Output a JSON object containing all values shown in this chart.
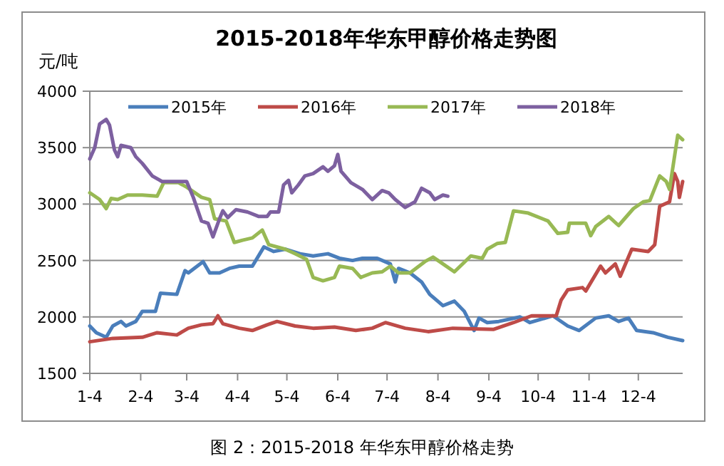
{
  "chart_data": {
    "type": "line",
    "title": "2015-2018年华东甲醇价格走势图",
    "ylabel": "元/吨",
    "annotations": [
      "图 2：2015-2018 年华东甲醇价格走势"
    ],
    "xlim": [
      "--01-04",
      "--12-31"
    ],
    "xticks": [
      {
        "value": "--01-04",
        "label": "1-4"
      },
      {
        "value": "--02-04",
        "label": "2-4"
      },
      {
        "value": "--03-04",
        "label": "3-4"
      },
      {
        "value": "--04-04",
        "label": "4-4"
      },
      {
        "value": "--05-04",
        "label": "5-4"
      },
      {
        "value": "--06-04",
        "label": "6-4"
      },
      {
        "value": "--07-04",
        "label": "7-4"
      },
      {
        "value": "--08-04",
        "label": "8-4"
      },
      {
        "value": "--09-04",
        "label": "9-4"
      },
      {
        "value": "--10-04",
        "label": "10-4"
      },
      {
        "value": "--11-04",
        "label": "11-4"
      },
      {
        "value": "--12-04",
        "label": "12-4"
      }
    ],
    "ylim": [
      1500,
      4000
    ],
    "yticks": [
      1500,
      2000,
      2500,
      3000,
      3500,
      4000
    ],
    "grid": "y",
    "legend": "top",
    "series": [
      {
        "name": "2015年",
        "color": "#4a7ebb",
        "x": [
          "--01-04",
          "--01-08",
          "--01-14",
          "--01-18",
          "--01-23",
          "--01-26",
          "--02-01",
          "--02-05",
          "--02-13",
          "--02-16",
          "--02-26",
          "--03-03",
          "--03-05",
          "--03-14",
          "--03-18",
          "--03-24",
          "--03-30",
          "--04-05",
          "--04-13",
          "--04-20",
          "--04-26",
          "--05-03",
          "--05-12",
          "--05-20",
          "--05-29",
          "--06-05",
          "--06-13",
          "--06-19",
          "--06-25",
          "--06-28",
          "--07-06",
          "--07-09",
          "--07-11",
          "--07-18",
          "--07-25",
          "--07-30",
          "--08-07",
          "--08-14",
          "--08-20",
          "--08-26",
          "--08-29",
          "--09-03",
          "--09-10",
          "--09-23",
          "--09-29",
          "--10-13",
          "--10-22",
          "--10-29",
          "--11-08",
          "--11-16",
          "--11-22",
          "--11-28",
          "--12-03",
          "--12-13",
          "--12-22",
          "--12-31"
        ],
        "values": [
          1920,
          1860,
          1820,
          1920,
          1960,
          1920,
          1960,
          2050,
          2050,
          2210,
          2200,
          2410,
          2390,
          2490,
          2390,
          2390,
          2430,
          2450,
          2450,
          2620,
          2580,
          2600,
          2560,
          2540,
          2560,
          2520,
          2500,
          2520,
          2520,
          2520,
          2470,
          2310,
          2430,
          2390,
          2310,
          2200,
          2100,
          2140,
          2050,
          1880,
          1990,
          1950,
          1960,
          2000,
          1950,
          2010,
          1920,
          1880,
          1990,
          2010,
          1960,
          1990,
          1880,
          1860,
          1820,
          1790
        ]
      },
      {
        "name": "2016年",
        "color": "#be4b48",
        "x": [
          "--01-04",
          "--01-18",
          "--02-05",
          "--02-14",
          "--02-26",
          "--03-05",
          "--03-13",
          "--03-20",
          "--03-23",
          "--03-26",
          "--04-05",
          "--04-13",
          "--04-22",
          "--04-28",
          "--05-09",
          "--05-20",
          "--06-02",
          "--06-15",
          "--06-25",
          "--07-03",
          "--07-15",
          "--07-29",
          "--08-13",
          "--09-07",
          "--09-19",
          "--09-30",
          "--10-15",
          "--10-18",
          "--10-22",
          "--10-31",
          "--11-02",
          "--11-11",
          "--11-14",
          "--11-20",
          "--11-23",
          "--11-30",
          "--12-10",
          "--12-14",
          "--12-17",
          "--12-23",
          "--12-26",
          "--12-28",
          "--12-29",
          "--12-31"
        ],
        "values": [
          1780,
          1810,
          1820,
          1860,
          1840,
          1900,
          1930,
          1940,
          2010,
          1940,
          1900,
          1880,
          1930,
          1960,
          1920,
          1900,
          1910,
          1880,
          1900,
          1950,
          1900,
          1870,
          1900,
          1890,
          1950,
          2010,
          2010,
          2150,
          2240,
          2260,
          2230,
          2450,
          2390,
          2470,
          2360,
          2600,
          2580,
          2640,
          2980,
          3020,
          3270,
          3200,
          3060,
          3200
        ]
      },
      {
        "name": "2017年",
        "color": "#98b954",
        "x": [
          "--01-04",
          "--01-10",
          "--01-14",
          "--01-17",
          "--01-21",
          "--01-27",
          "--02-05",
          "--02-14",
          "--02-18",
          "--02-27",
          "--03-04",
          "--03-13",
          "--03-18",
          "--03-21",
          "--03-28",
          "--04-02",
          "--04-07",
          "--04-13",
          "--04-19",
          "--04-23",
          "--05-03",
          "--05-09",
          "--05-16",
          "--05-20",
          "--05-26",
          "--06-02",
          "--06-05",
          "--06-13",
          "--06-18",
          "--06-25",
          "--07-01",
          "--07-06",
          "--07-11",
          "--07-18",
          "--07-27",
          "--08-01",
          "--08-05",
          "--08-14",
          "--08-24",
          "--08-31",
          "--09-03",
          "--09-09",
          "--09-14",
          "--09-19",
          "--09-28",
          "--10-10",
          "--10-16",
          "--10-22",
          "--10-23",
          "--11-02",
          "--11-05",
          "--11-08",
          "--11-16",
          "--11-22",
          "--12-01",
          "--12-07",
          "--12-11",
          "--12-17",
          "--12-21",
          "--12-23",
          "--12-28",
          "--12-31"
        ],
        "values": [
          3100,
          3040,
          2960,
          3050,
          3040,
          3080,
          3080,
          3070,
          3190,
          3190,
          3150,
          3060,
          3040,
          2870,
          2850,
          2660,
          2680,
          2700,
          2770,
          2640,
          2600,
          2560,
          2510,
          2350,
          2320,
          2350,
          2450,
          2430,
          2350,
          2390,
          2400,
          2450,
          2390,
          2390,
          2490,
          2530,
          2490,
          2400,
          2540,
          2520,
          2600,
          2650,
          2660,
          2940,
          2920,
          2850,
          2740,
          2750,
          2830,
          2830,
          2720,
          2800,
          2890,
          2810,
          2960,
          3020,
          3030,
          3250,
          3200,
          3130,
          3610,
          3570
        ]
      },
      {
        "name": "2018年",
        "color": "#7d60a0",
        "x": [
          "--01-04",
          "--01-07",
          "--01-10",
          "--01-14",
          "--01-16",
          "--01-19",
          "--01-21",
          "--01-23",
          "--01-29",
          "--02-01",
          "--02-05",
          "--02-11",
          "--02-17",
          "--03-04",
          "--03-08",
          "--03-13",
          "--03-17",
          "--03-20",
          "--03-24",
          "--03-26",
          "--03-29",
          "--04-03",
          "--04-10",
          "--04-17",
          "--04-22",
          "--04-24",
          "--04-29",
          "--05-02",
          "--05-05",
          "--05-07",
          "--05-11",
          "--05-15",
          "--05-20",
          "--05-26",
          "--05-29",
          "--06-02",
          "--06-04",
          "--06-06",
          "--06-12",
          "--06-19",
          "--06-25",
          "--07-01",
          "--07-05",
          "--07-09",
          "--07-15",
          "--07-21",
          "--07-25",
          "--07-30",
          "--08-02",
          "--08-07",
          "--08-10"
        ],
        "values": [
          3400,
          3500,
          3710,
          3750,
          3700,
          3480,
          3420,
          3520,
          3500,
          3420,
          3360,
          3250,
          3200,
          3200,
          3060,
          2850,
          2830,
          2710,
          2870,
          2940,
          2880,
          2950,
          2930,
          2890,
          2890,
          2930,
          2930,
          3170,
          3210,
          3100,
          3170,
          3250,
          3270,
          3330,
          3290,
          3340,
          3440,
          3290,
          3190,
          3130,
          3040,
          3120,
          3100,
          3040,
          2970,
          3020,
          3140,
          3100,
          3040,
          3080,
          3070
        ]
      }
    ]
  }
}
